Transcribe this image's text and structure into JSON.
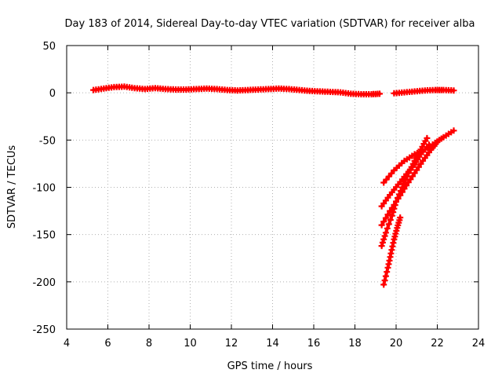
{
  "chart_data": {
    "type": "scatter",
    "title": "Day 183 of 2014, Sidereal Day-to-day VTEC variation (SDTVAR) for receiver alba",
    "xlabel": "GPS time / hours",
    "ylabel": "SDTVAR / TECUs",
    "xlim": [
      4,
      24
    ],
    "ylim": [
      -250,
      50
    ],
    "xticks": [
      4,
      6,
      8,
      10,
      12,
      14,
      16,
      18,
      20,
      22,
      24
    ],
    "yticks": [
      -250,
      -200,
      -150,
      -100,
      -50,
      0,
      50
    ],
    "grid": true,
    "color": "#ff0000",
    "series": [
      {
        "name": "main-arc",
        "points": [
          [
            5.3,
            3
          ],
          [
            5.8,
            4.5
          ],
          [
            6.3,
            6
          ],
          [
            6.8,
            6.5
          ],
          [
            7.3,
            5
          ],
          [
            7.8,
            4
          ],
          [
            8.3,
            5
          ],
          [
            8.8,
            4
          ],
          [
            9.3,
            3.5
          ],
          [
            9.8,
            3.5
          ],
          [
            10.3,
            4
          ],
          [
            10.8,
            4.5
          ],
          [
            11.3,
            4
          ],
          [
            11.8,
            3
          ],
          [
            12.3,
            2.5
          ],
          [
            12.8,
            3
          ],
          [
            13.3,
            3.5
          ],
          [
            13.8,
            4
          ],
          [
            14.3,
            4.5
          ],
          [
            14.8,
            4
          ],
          [
            15.3,
            3
          ],
          [
            15.8,
            2
          ],
          [
            16.3,
            1.5
          ],
          [
            16.8,
            1
          ],
          [
            17.3,
            0.5
          ],
          [
            17.8,
            -1
          ],
          [
            18.3,
            -1.5
          ],
          [
            18.8,
            -1.5
          ],
          [
            19.2,
            -1
          ]
        ]
      },
      {
        "name": "late-arc",
        "points": [
          [
            19.9,
            -0.5
          ],
          [
            20.4,
            0.5
          ],
          [
            20.9,
            1.5
          ],
          [
            21.4,
            2.5
          ],
          [
            21.9,
            3
          ],
          [
            22.3,
            3
          ],
          [
            22.8,
            2.5
          ]
        ]
      },
      {
        "name": "track-a",
        "points": [
          [
            19.4,
            -95
          ],
          [
            19.9,
            -82
          ],
          [
            20.4,
            -72
          ],
          [
            20.9,
            -65
          ],
          [
            21.4,
            -60
          ],
          [
            21.9,
            -53
          ],
          [
            22.3,
            -47
          ],
          [
            22.8,
            -40
          ]
        ]
      },
      {
        "name": "track-b",
        "points": [
          [
            19.3,
            -120
          ],
          [
            19.7,
            -108
          ],
          [
            20.1,
            -97
          ],
          [
            20.5,
            -86
          ],
          [
            20.9,
            -76
          ],
          [
            21.2,
            -65
          ],
          [
            21.6,
            -55
          ]
        ]
      },
      {
        "name": "track-c",
        "points": [
          [
            19.3,
            -140
          ],
          [
            19.7,
            -125
          ],
          [
            20.1,
            -112
          ],
          [
            20.5,
            -98
          ],
          [
            20.9,
            -85
          ],
          [
            21.3,
            -72
          ],
          [
            21.7,
            -60
          ],
          [
            22.0,
            -52
          ]
        ]
      },
      {
        "name": "track-d",
        "points": [
          [
            19.3,
            -162
          ],
          [
            19.5,
            -148
          ],
          [
            19.8,
            -130
          ],
          [
            20.0,
            -115
          ],
          [
            20.3,
            -100
          ],
          [
            20.6,
            -85
          ],
          [
            20.9,
            -72
          ],
          [
            21.2,
            -60
          ],
          [
            21.5,
            -48
          ]
        ]
      },
      {
        "name": "track-e",
        "points": [
          [
            19.4,
            -203
          ],
          [
            19.6,
            -185
          ],
          [
            19.75,
            -170
          ],
          [
            19.9,
            -155
          ],
          [
            20.05,
            -143
          ],
          [
            20.2,
            -132
          ]
        ]
      }
    ]
  }
}
